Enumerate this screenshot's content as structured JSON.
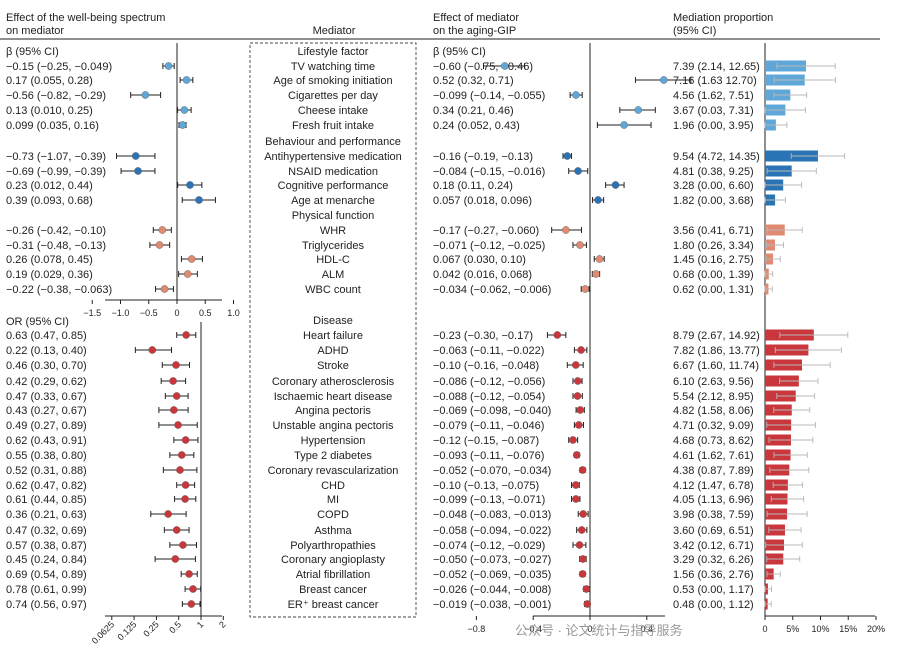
{
  "headers": {
    "effect_col": [
      "Effect of the well-being spectrum",
      "on mediator"
    ],
    "mediator_col": "Mediator",
    "aging_col": [
      "Effect of mediator",
      "on the aging-GIP"
    ],
    "prop_col": [
      "Mediation proportion",
      "(95% CI)"
    ]
  },
  "beta_label": "β (95% CI)",
  "beta_label_right": "β (95% CI)",
  "or_label": "OR (95% CI)",
  "watermark": "公众号 · 论文统计与指导服务",
  "colors": {
    "light": "#5fa7d8",
    "dark": "#2a73b4",
    "salmon": "#e08a72",
    "red": "#c9373d"
  },
  "chart_data": {
    "type": "forest",
    "groups": [
      {
        "name": "Lifestyle factor",
        "color": "light"
      },
      {
        "name": "Behaviour and performance",
        "color": "dark"
      },
      {
        "name": "Physical function",
        "color": "salmon"
      },
      {
        "name": "Disease",
        "color": "red"
      }
    ],
    "rows": [
      {
        "group": "Lifestyle factor",
        "mediator": "TV watching time",
        "exp_text": "−0.15 (−0.25, −0.049)",
        "exp": [
          -0.15,
          -0.25,
          -0.049
        ],
        "med_text": "−0.60 (−0.75, −0.46)",
        "med": [
          -0.6,
          -0.75,
          -0.46
        ],
        "prop_text": "7.39 (2.14, 12.65)",
        "prop": [
          7.39,
          2.14,
          12.65
        ]
      },
      {
        "group": "Lifestyle factor",
        "mediator": "Age of smoking initiation",
        "exp_text": "0.17 (0.055, 0.28)",
        "exp": [
          0.17,
          0.055,
          0.28
        ],
        "med_text": "0.52 (0.32, 0.71)",
        "med": [
          0.52,
          0.32,
          0.71
        ],
        "prop_text": "7.16 (1.63 12.70)",
        "prop": [
          7.16,
          1.63,
          12.7
        ]
      },
      {
        "group": "Lifestyle factor",
        "mediator": "Cigarettes per day",
        "exp_text": "−0.56 (−0.82, −0.29)",
        "exp": [
          -0.56,
          -0.82,
          -0.29
        ],
        "med_text": "−0.099 (−0.14, −0.055)",
        "med": [
          -0.099,
          -0.14,
          -0.055
        ],
        "prop_text": "4.56 (1.62, 7.51)",
        "prop": [
          4.56,
          1.62,
          7.51
        ]
      },
      {
        "group": "Lifestyle factor",
        "mediator": "Cheese intake",
        "exp_text": "0.13 (0.010, 0.25)",
        "exp": [
          0.13,
          0.01,
          0.25
        ],
        "med_text": "0.34 (0.21, 0.46)",
        "med": [
          0.34,
          0.21,
          0.46
        ],
        "prop_text": "3.67 (0.03, 7.31)",
        "prop": [
          3.67,
          0.03,
          7.31
        ]
      },
      {
        "group": "Lifestyle factor",
        "mediator": "Fresh fruit intake",
        "exp_text": "0.099 (0.035, 0.16)",
        "exp": [
          0.099,
          0.035,
          0.16
        ],
        "med_text": "0.24 (0.052, 0.43)",
        "med": [
          0.24,
          0.052,
          0.43
        ],
        "prop_text": "1.96 (0.00, 3.95)",
        "prop": [
          1.96,
          0.0,
          3.95
        ]
      },
      {
        "group": "Behaviour and performance",
        "mediator": "Antihypertensive medication",
        "exp_text": "−0.73 (−1.07, −0.39)",
        "exp": [
          -0.73,
          -1.07,
          -0.39
        ],
        "med_text": "−0.16 (−0.19, −0.13)",
        "med": [
          -0.16,
          -0.19,
          -0.13
        ],
        "prop_text": "9.54 (4.72, 14.35)",
        "prop": [
          9.54,
          4.72,
          14.35
        ]
      },
      {
        "group": "Behaviour and performance",
        "mediator": "NSAID medication",
        "exp_text": "−0.69 (−0.99, −0.39)",
        "exp": [
          -0.69,
          -0.99,
          -0.39
        ],
        "med_text": "−0.084 (−0.15, −0.016)",
        "med": [
          -0.084,
          -0.15,
          -0.016
        ],
        "prop_text": "4.81 (0.38, 9.25)",
        "prop": [
          4.81,
          0.38,
          9.25
        ]
      },
      {
        "group": "Behaviour and performance",
        "mediator": "Cognitive performance",
        "exp_text": "0.23 (0.012, 0.44)",
        "exp": [
          0.23,
          0.012,
          0.44
        ],
        "med_text": "0.18 (0.11, 0.24)",
        "med": [
          0.18,
          0.11,
          0.24
        ],
        "prop_text": "3.28 (0.00, 6.60)",
        "prop": [
          3.28,
          0.0,
          6.6
        ]
      },
      {
        "group": "Behaviour and performance",
        "mediator": "Age at menarche",
        "exp_text": "0.39 (0.093, 0.68)",
        "exp": [
          0.39,
          0.093,
          0.68
        ],
        "med_text": "0.057 (0.018, 0.096)",
        "med": [
          0.057,
          0.018,
          0.096
        ],
        "prop_text": "1.82 (0.00, 3.68)",
        "prop": [
          1.82,
          0.0,
          3.68
        ]
      },
      {
        "group": "Physical function",
        "mediator": "WHR",
        "exp_text": "−0.26 (−0.42, −0.10)",
        "exp": [
          -0.26,
          -0.42,
          -0.1
        ],
        "med_text": "−0.17 (−0.27, −0.060)",
        "med": [
          -0.17,
          -0.27,
          -0.06
        ],
        "prop_text": "3.56 (0.41, 6.71)",
        "prop": [
          3.56,
          0.41,
          6.71
        ]
      },
      {
        "group": "Physical function",
        "mediator": "Triglycerides",
        "exp_text": "−0.31 (−0.48, −0.13)",
        "exp": [
          -0.31,
          -0.48,
          -0.13
        ],
        "med_text": "−0.071 (−0.12, −0.025)",
        "med": [
          -0.071,
          -0.12,
          -0.025
        ],
        "prop_text": "1.80 (0.26, 3.34)",
        "prop": [
          1.8,
          0.26,
          3.34
        ]
      },
      {
        "group": "Physical function",
        "mediator": "HDL-C",
        "exp_text": "0.26 (0.078, 0.45)",
        "exp": [
          0.26,
          0.078,
          0.45
        ],
        "med_text": "0.067 (0.030, 0.10)",
        "med": [
          0.067,
          0.03,
          0.1
        ],
        "prop_text": "1.45 (0.16, 2.75)",
        "prop": [
          1.45,
          0.16,
          2.75
        ]
      },
      {
        "group": "Physical function",
        "mediator": "ALM",
        "exp_text": "0.19 (0.029, 0.36)",
        "exp": [
          0.19,
          0.029,
          0.36
        ],
        "med_text": "0.042 (0.016, 0.068)",
        "med": [
          0.042,
          0.016,
          0.068
        ],
        "prop_text": "0.68 (0.00, 1.39)",
        "prop": [
          0.68,
          0.0,
          1.39
        ]
      },
      {
        "group": "Physical function",
        "mediator": "WBC count",
        "exp_text": "−0.22 (−0.38, −0.063)",
        "exp": [
          -0.22,
          -0.38,
          -0.063
        ],
        "med_text": "−0.034 (−0.062, −0.006)",
        "med": [
          -0.034,
          -0.062,
          -0.006
        ],
        "prop_text": "0.62 (0.00, 1.31)",
        "prop": [
          0.62,
          0.0,
          1.31
        ]
      },
      {
        "group": "Disease",
        "mediator": "Heart failure",
        "exp_text": "0.63 (0.47, 0.85)",
        "exp": [
          0.63,
          0.47,
          0.85
        ],
        "med_text": "−0.23 (−0.30, −0.17)",
        "med": [
          -0.23,
          -0.3,
          -0.17
        ],
        "prop_text": "8.79 (2.67, 14.92)",
        "prop": [
          8.79,
          2.67,
          14.92
        ]
      },
      {
        "group": "Disease",
        "mediator": "ADHD",
        "exp_text": "0.22 (0.13, 0.40)",
        "exp": [
          0.22,
          0.13,
          0.4
        ],
        "med_text": "−0.063 (−0.11, −0.022)",
        "med": [
          -0.063,
          -0.11,
          -0.022
        ],
        "prop_text": "7.82 (1.86, 13.77)",
        "prop": [
          7.82,
          1.86,
          13.77
        ]
      },
      {
        "group": "Disease",
        "mediator": "Stroke",
        "exp_text": "0.46 (0.30, 0.70)",
        "exp": [
          0.46,
          0.3,
          0.7
        ],
        "med_text": "−0.10 (−0.16, −0.048)",
        "med": [
          -0.1,
          -0.16,
          -0.048
        ],
        "prop_text": "6.67 (1.60, 11.74)",
        "prop": [
          6.67,
          1.6,
          11.74
        ]
      },
      {
        "group": "Disease",
        "mediator": "Coronary atherosclerosis",
        "exp_text": "0.42 (0.29, 0.62)",
        "exp": [
          0.42,
          0.29,
          0.62
        ],
        "med_text": "−0.086 (−0.12, −0.056)",
        "med": [
          -0.086,
          -0.12,
          -0.056
        ],
        "prop_text": "6.10 (2.63, 9.56)",
        "prop": [
          6.1,
          2.63,
          9.56
        ]
      },
      {
        "group": "Disease",
        "mediator": "Ischaemic heart disease",
        "exp_text": "0.47 (0.33, 0.67)",
        "exp": [
          0.47,
          0.33,
          0.67
        ],
        "med_text": "−0.088 (−0.12, −0.054)",
        "med": [
          -0.088,
          -0.12,
          -0.054
        ],
        "prop_text": "5.54 (2.12, 8.95)",
        "prop": [
          5.54,
          2.12,
          8.95
        ]
      },
      {
        "group": "Disease",
        "mediator": "Angina pectoris",
        "exp_text": "0.43 (0.27, 0.67)",
        "exp": [
          0.43,
          0.27,
          0.67
        ],
        "med_text": "−0.069 (−0.098, −0.040)",
        "med": [
          -0.069,
          -0.098,
          -0.04
        ],
        "prop_text": "4.82 (1.58, 8.06)",
        "prop": [
          4.82,
          1.58,
          8.06
        ]
      },
      {
        "group": "Disease",
        "mediator": "Unstable angina pectoris",
        "exp_text": "0.49 (0.27, 0.89)",
        "exp": [
          0.49,
          0.27,
          0.89
        ],
        "med_text": "−0.079 (−0.11, −0.046)",
        "med": [
          -0.079,
          -0.11,
          -0.046
        ],
        "prop_text": "4.71 (0.32, 9.09)",
        "prop": [
          4.71,
          0.32,
          9.09
        ]
      },
      {
        "group": "Disease",
        "mediator": "Hypertension",
        "exp_text": "0.62 (0.43, 0.91)",
        "exp": [
          0.62,
          0.43,
          0.91
        ],
        "med_text": "−0.12 (−0.15, −0.087)",
        "med": [
          -0.12,
          -0.15,
          -0.087
        ],
        "prop_text": "4.68 (0.73, 8.62)",
        "prop": [
          4.68,
          0.73,
          8.62
        ]
      },
      {
        "group": "Disease",
        "mediator": "Type 2 diabetes",
        "exp_text": "0.55 (0.38, 0.80)",
        "exp": [
          0.55,
          0.38,
          0.8
        ],
        "med_text": "−0.093 (−0.11, −0.076)",
        "med": [
          -0.093,
          -0.11,
          -0.076
        ],
        "prop_text": "4.61 (1.62, 7.61)",
        "prop": [
          4.61,
          1.62,
          7.61
        ]
      },
      {
        "group": "Disease",
        "mediator": "Coronary revascularization",
        "exp_text": "0.52 (0.31, 0.88)",
        "exp": [
          0.52,
          0.31,
          0.88
        ],
        "med_text": "−0.052 (−0.070, −0.034)",
        "med": [
          -0.052,
          -0.07,
          -0.034
        ],
        "prop_text": "4.38 (0.87, 7.89)",
        "prop": [
          4.38,
          0.87,
          7.89
        ]
      },
      {
        "group": "Disease",
        "mediator": "CHD",
        "exp_text": "0.62 (0.47, 0.82)",
        "exp": [
          0.62,
          0.47,
          0.82
        ],
        "med_text": "−0.10 (−0.13, −0.075)",
        "med": [
          -0.1,
          -0.13,
          -0.075
        ],
        "prop_text": "4.12 (1.47, 6.78)",
        "prop": [
          4.12,
          1.47,
          6.78
        ]
      },
      {
        "group": "Disease",
        "mediator": "MI",
        "exp_text": "0.61 (0.44, 0.85)",
        "exp": [
          0.61,
          0.44,
          0.85
        ],
        "med_text": "−0.099 (−0.13, −0.071)",
        "med": [
          -0.099,
          -0.13,
          -0.071
        ],
        "prop_text": "4.05 (1.13, 6.96)",
        "prop": [
          4.05,
          1.13,
          6.96
        ]
      },
      {
        "group": "Disease",
        "mediator": "COPD",
        "exp_text": "0.36 (0.21, 0.63)",
        "exp": [
          0.36,
          0.21,
          0.63
        ],
        "med_text": "−0.048 (−0.083, −0.013)",
        "med": [
          -0.048,
          -0.083,
          -0.013
        ],
        "prop_text": "3.98 (0.38, 7.59)",
        "prop": [
          3.98,
          0.38,
          7.59
        ]
      },
      {
        "group": "Disease",
        "mediator": "Asthma",
        "exp_text": "0.47 (0.32, 0.69)",
        "exp": [
          0.47,
          0.32,
          0.69
        ],
        "med_text": "−0.058 (−0.094, −0.022)",
        "med": [
          -0.058,
          -0.094,
          -0.022
        ],
        "prop_text": "3.60 (0.69, 6.51)",
        "prop": [
          3.6,
          0.69,
          6.51
        ]
      },
      {
        "group": "Disease",
        "mediator": "Polyarthropathies",
        "exp_text": "0.57 (0.38, 0.87)",
        "exp": [
          0.57,
          0.38,
          0.87
        ],
        "med_text": "−0.074 (−0.12, −0.029)",
        "med": [
          -0.074,
          -0.12,
          -0.029
        ],
        "prop_text": "3.42 (0.12, 6.71)",
        "prop": [
          3.42,
          0.12,
          6.71
        ]
      },
      {
        "group": "Disease",
        "mediator": "Coronary angioplasty",
        "exp_text": "0.45 (0.24, 0.84)",
        "exp": [
          0.45,
          0.24,
          0.84
        ],
        "med_text": "−0.050 (−0.073, −0.027)",
        "med": [
          -0.05,
          -0.073,
          -0.027
        ],
        "prop_text": "3.29 (0.32, 6.26)",
        "prop": [
          3.29,
          0.32,
          6.26
        ]
      },
      {
        "group": "Disease",
        "mediator": "Atrial fibrillation",
        "exp_text": "0.69 (0.54, 0.89)",
        "exp": [
          0.69,
          0.54,
          0.89
        ],
        "med_text": "−0.052 (−0.069, −0.035)",
        "med": [
          -0.052,
          -0.069,
          -0.035
        ],
        "prop_text": "1.56 (0.36, 2.76)",
        "prop": [
          1.56,
          0.36,
          2.76
        ]
      },
      {
        "group": "Disease",
        "mediator": "Breast cancer",
        "exp_text": "0.78 (0.61, 0.99)",
        "exp": [
          0.78,
          0.61,
          0.99
        ],
        "med_text": "−0.026 (−0.044, −0.008)",
        "med": [
          -0.026,
          -0.044,
          -0.008
        ],
        "prop_text": "0.53 (0.00, 1.17)",
        "prop": [
          0.53,
          0.0,
          1.17
        ]
      },
      {
        "group": "Disease",
        "mediator": "ER⁺ breast cancer",
        "exp_text": "0.74 (0.56, 0.97)",
        "exp": [
          0.74,
          0.56,
          0.97
        ],
        "med_text": "−0.019 (−0.038, −0.001)",
        "med": [
          -0.019,
          -0.038,
          -0.001
        ],
        "prop_text": "0.48 (0.00, 1.12)",
        "prop": [
          0.48,
          0.0,
          1.12
        ]
      }
    ],
    "axes": {
      "beta_exposure": {
        "range": [
          -1.5,
          1.0
        ],
        "ticks": [
          "−1.5",
          "−1.0",
          "−0.5",
          "0",
          "0.5",
          "1.0"
        ],
        "tick_values": [
          -1.5,
          -1.0,
          -0.5,
          0,
          0.5,
          1.0
        ],
        "ref": 0
      },
      "or_exposure": {
        "scale": "log2",
        "range": [
          0.0625,
          2
        ],
        "ticks": [
          "0.0625",
          "0.125",
          "0.25",
          "0.5",
          "1",
          "2"
        ],
        "tick_values": [
          0.0625,
          0.125,
          0.25,
          0.5,
          1,
          2
        ],
        "ref": 1
      },
      "beta_mediator": {
        "range": [
          -0.8,
          0.6
        ],
        "ticks": [
          "−0.8",
          "−0.4",
          "0",
          "0.4"
        ],
        "tick_values": [
          -0.8,
          -0.4,
          0,
          0.4
        ],
        "ref": 0
      },
      "proportion": {
        "range": [
          0,
          20
        ],
        "unit": "%",
        "ticks": [
          "0",
          "5%",
          "10%",
          "15%",
          "20%"
        ],
        "tick_values": [
          0,
          5,
          10,
          15,
          20
        ]
      }
    }
  }
}
